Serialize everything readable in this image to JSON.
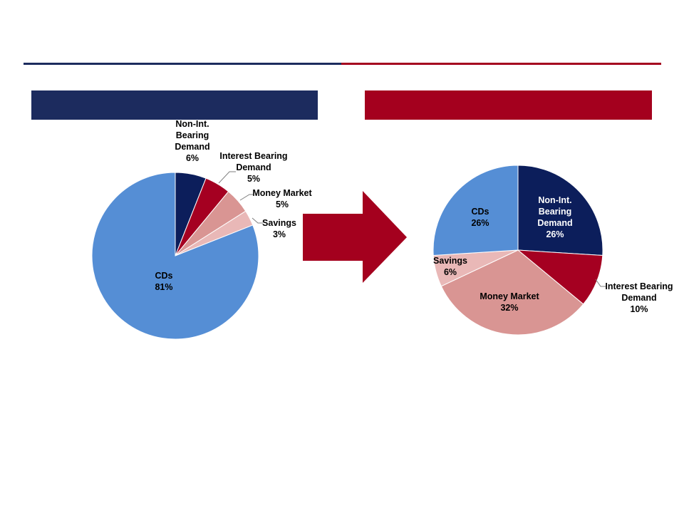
{
  "colors": {
    "navy": "#1c2b5e",
    "crimson": "#a4001e",
    "non_int_bearing": "#0c1e5b",
    "interest_bearing": "#a50021",
    "money_market": "#d99593",
    "savings": "#e9b8b7",
    "cds": "#558ed5"
  },
  "arrow": {
    "icon": "right-arrow-icon"
  },
  "chart_data": [
    {
      "type": "pie",
      "title": "",
      "slices": [
        {
          "label": "Non-Int. Bearing Demand",
          "value": 6,
          "pct": "6%",
          "color": "#0c1e5b"
        },
        {
          "label": "Interest Bearing Demand",
          "value": 5,
          "pct": "5%",
          "color": "#a50021"
        },
        {
          "label": "Money Market",
          "value": 5,
          "pct": "5%",
          "color": "#d99593"
        },
        {
          "label": "Savings",
          "value": 3,
          "pct": "3%",
          "color": "#e9b8b7"
        },
        {
          "label": "CDs",
          "value": 81,
          "pct": "81%",
          "color": "#558ed5"
        }
      ]
    },
    {
      "type": "pie",
      "title": "",
      "slices": [
        {
          "label": "Non-Int. Bearing Demand",
          "value": 26,
          "pct": "26%",
          "color": "#0c1e5b"
        },
        {
          "label": "Interest Bearing Demand",
          "value": 10,
          "pct": "10%",
          "color": "#a50021"
        },
        {
          "label": "Money Market",
          "value": 32,
          "pct": "32%",
          "color": "#d99593"
        },
        {
          "label": "Savings",
          "value": 6,
          "pct": "6%",
          "color": "#e9b8b7"
        },
        {
          "label": "CDs",
          "value": 26,
          "pct": "26%",
          "color": "#558ed5"
        }
      ]
    }
  ]
}
